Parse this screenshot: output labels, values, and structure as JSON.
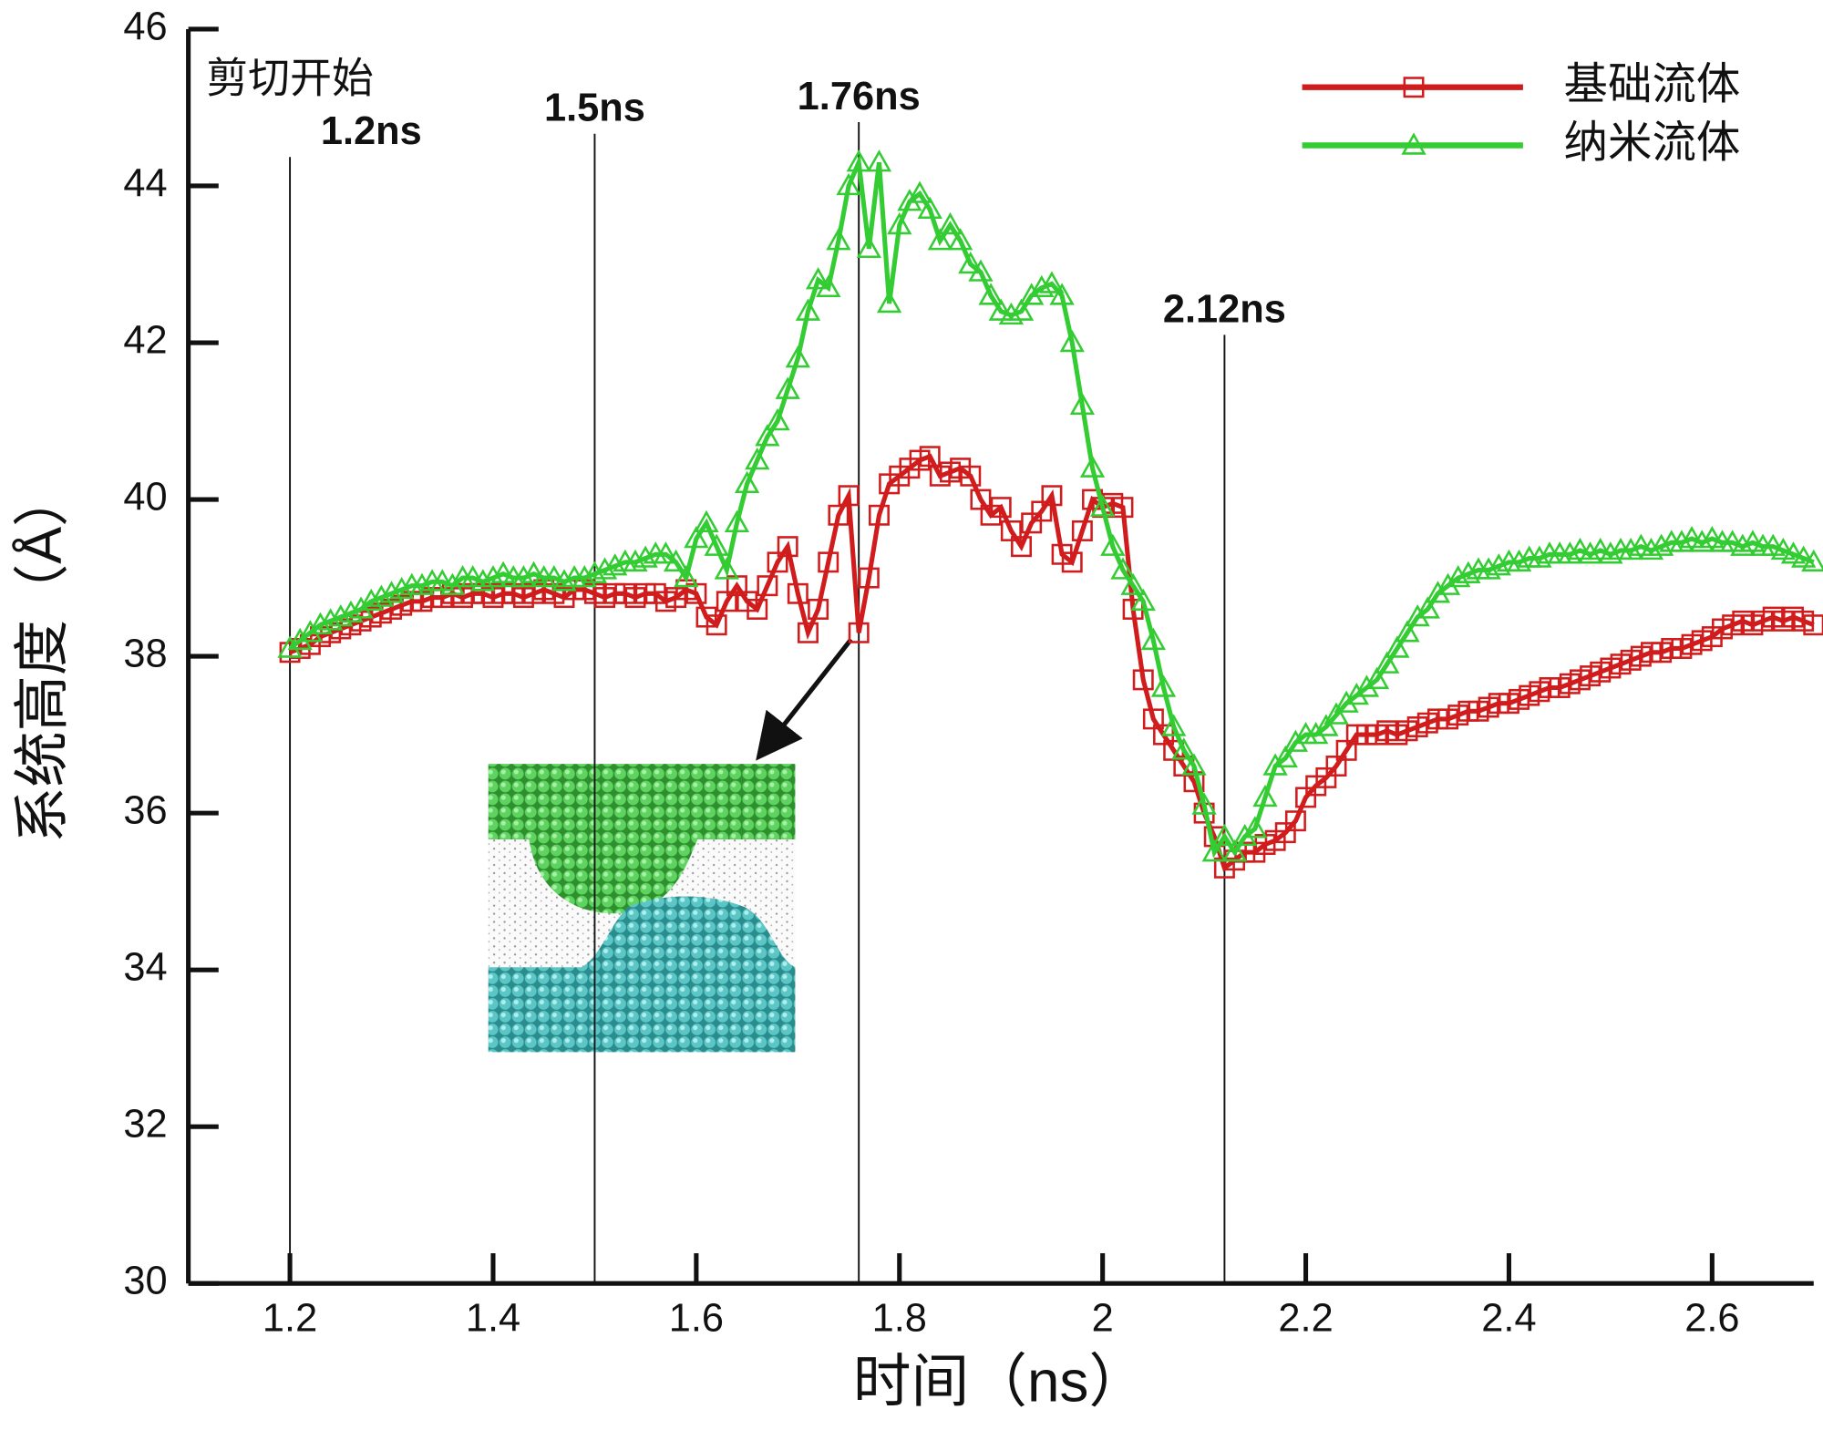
{
  "chart_data": {
    "type": "line",
    "xlabel": "时间（ns）",
    "ylabel": "系统高度（Å）",
    "xlim": [
      1.1,
      2.7
    ],
    "xticks": [
      1.2,
      1.4,
      1.6,
      1.8,
      2,
      2.2,
      2.4,
      2.6
    ],
    "ylim": [
      30,
      46
    ],
    "yticks": [
      30,
      32,
      34,
      36,
      38,
      40,
      42,
      44,
      46
    ],
    "legend": "upper right",
    "annotations": [
      {
        "lines": [
          "剪切开始",
          "1.2ns"
        ],
        "x": 1.2
      },
      {
        "lines": [
          "1.5ns"
        ],
        "x": 1.5
      },
      {
        "lines": [
          "1.76ns"
        ],
        "x": 1.76
      },
      {
        "lines": [
          "2.12ns"
        ],
        "x": 2.12
      }
    ],
    "x": [
      1.2,
      1.21,
      1.22,
      1.23,
      1.24,
      1.25,
      1.26,
      1.27,
      1.28,
      1.29,
      1.3,
      1.31,
      1.32,
      1.33,
      1.34,
      1.35,
      1.36,
      1.37,
      1.38,
      1.39,
      1.4,
      1.41,
      1.42,
      1.43,
      1.44,
      1.45,
      1.46,
      1.47,
      1.48,
      1.49,
      1.5,
      1.51,
      1.52,
      1.53,
      1.54,
      1.55,
      1.56,
      1.57,
      1.58,
      1.59,
      1.6,
      1.61,
      1.62,
      1.63,
      1.64,
      1.65,
      1.66,
      1.67,
      1.68,
      1.69,
      1.7,
      1.71,
      1.72,
      1.73,
      1.74,
      1.75,
      1.76,
      1.77,
      1.78,
      1.79,
      1.8,
      1.81,
      1.82,
      1.83,
      1.84,
      1.85,
      1.86,
      1.87,
      1.88,
      1.89,
      1.9,
      1.91,
      1.92,
      1.93,
      1.94,
      1.95,
      1.96,
      1.97,
      1.98,
      1.99,
      2,
      2.01,
      2.02,
      2.03,
      2.04,
      2.05,
      2.06,
      2.07,
      2.08,
      2.09,
      2.1,
      2.11,
      2.12,
      2.13,
      2.14,
      2.15,
      2.16,
      2.17,
      2.18,
      2.19,
      2.2,
      2.21,
      2.22,
      2.23,
      2.24,
      2.25,
      2.26,
      2.27,
      2.28,
      2.29,
      2.3,
      2.31,
      2.32,
      2.33,
      2.34,
      2.35,
      2.36,
      2.37,
      2.38,
      2.39,
      2.4,
      2.41,
      2.42,
      2.43,
      2.44,
      2.45,
      2.46,
      2.47,
      2.48,
      2.49,
      2.5,
      2.51,
      2.52,
      2.53,
      2.54,
      2.55,
      2.56,
      2.57,
      2.58,
      2.59,
      2.6,
      2.61,
      2.62,
      2.63,
      2.64,
      2.65,
      2.66,
      2.67,
      2.68,
      2.69,
      2.7
    ],
    "series": [
      {
        "name": "基础流体",
        "color": "#d01c1c",
        "marker": "square",
        "values": [
          38.05,
          38.1,
          38.15,
          38.25,
          38.3,
          38.35,
          38.4,
          38.45,
          38.5,
          38.55,
          38.6,
          38.65,
          38.7,
          38.7,
          38.75,
          38.75,
          38.8,
          38.75,
          38.8,
          38.8,
          38.75,
          38.8,
          38.8,
          38.75,
          38.8,
          38.85,
          38.8,
          38.75,
          38.85,
          38.85,
          38.8,
          38.75,
          38.8,
          38.8,
          38.75,
          38.8,
          38.8,
          38.7,
          38.75,
          38.85,
          38.8,
          38.5,
          38.4,
          38.7,
          38.9,
          38.7,
          38.6,
          38.9,
          39.2,
          39.4,
          38.8,
          38.3,
          38.6,
          39.2,
          39.8,
          40.05,
          38.3,
          39.0,
          39.8,
          40.2,
          40.3,
          40.4,
          40.5,
          40.55,
          40.3,
          40.35,
          40.4,
          40.3,
          40.0,
          39.8,
          39.9,
          39.6,
          39.4,
          39.7,
          39.85,
          40.05,
          39.3,
          39.2,
          39.6,
          40.0,
          39.9,
          39.95,
          39.9,
          38.6,
          37.7,
          37.2,
          37.0,
          36.8,
          36.6,
          36.4,
          36.0,
          35.7,
          35.3,
          35.4,
          35.5,
          35.5,
          35.6,
          35.65,
          35.75,
          35.9,
          36.2,
          36.35,
          36.45,
          36.6,
          36.8,
          37.0,
          37.0,
          37.0,
          37.05,
          37.0,
          37.05,
          37.1,
          37.15,
          37.2,
          37.2,
          37.25,
          37.3,
          37.3,
          37.35,
          37.4,
          37.4,
          37.45,
          37.5,
          37.55,
          37.6,
          37.6,
          37.65,
          37.7,
          37.75,
          37.8,
          37.85,
          37.9,
          37.95,
          38.0,
          38.05,
          38.05,
          38.1,
          38.1,
          38.15,
          38.2,
          38.25,
          38.35,
          38.4,
          38.45,
          38.4,
          38.45,
          38.5,
          38.45,
          38.5,
          38.45,
          38.4
        ]
      },
      {
        "name": "纳米流体",
        "color": "#33cc33",
        "marker": "triangle",
        "values": [
          38.1,
          38.2,
          38.3,
          38.4,
          38.45,
          38.5,
          38.55,
          38.6,
          38.7,
          38.75,
          38.8,
          38.85,
          38.9,
          38.9,
          38.95,
          38.95,
          38.9,
          39.0,
          39.0,
          38.95,
          39.0,
          39.05,
          39.0,
          39.0,
          39.05,
          39.0,
          39.0,
          38.95,
          39.0,
          39.0,
          39.05,
          39.1,
          39.15,
          39.2,
          39.2,
          39.25,
          39.3,
          39.3,
          39.2,
          39.0,
          39.5,
          39.7,
          39.4,
          39.1,
          39.7,
          40.2,
          40.5,
          40.8,
          41.0,
          41.4,
          41.8,
          42.4,
          42.8,
          42.7,
          43.3,
          44.0,
          44.3,
          43.2,
          44.3,
          42.5,
          43.5,
          43.8,
          43.9,
          43.7,
          43.3,
          43.5,
          43.3,
          43.0,
          42.9,
          42.6,
          42.4,
          42.35,
          42.4,
          42.6,
          42.7,
          42.75,
          42.6,
          42.0,
          41.2,
          40.4,
          39.9,
          39.4,
          39.1,
          38.9,
          38.7,
          38.2,
          37.6,
          37.1,
          36.8,
          36.6,
          36.1,
          35.5,
          35.7,
          35.5,
          35.7,
          35.8,
          36.2,
          36.6,
          36.7,
          36.9,
          37.0,
          37.0,
          37.1,
          37.25,
          37.4,
          37.5,
          37.6,
          37.7,
          37.9,
          38.1,
          38.3,
          38.5,
          38.6,
          38.8,
          38.9,
          39.0,
          39.05,
          39.1,
          39.1,
          39.15,
          39.2,
          39.2,
          39.25,
          39.25,
          39.3,
          39.3,
          39.3,
          39.35,
          39.3,
          39.35,
          39.3,
          39.35,
          39.35,
          39.4,
          39.35,
          39.4,
          39.45,
          39.45,
          39.5,
          39.45,
          39.5,
          39.45,
          39.45,
          39.4,
          39.45,
          39.4,
          39.4,
          39.35,
          39.3,
          39.25,
          39.2
        ]
      }
    ]
  }
}
